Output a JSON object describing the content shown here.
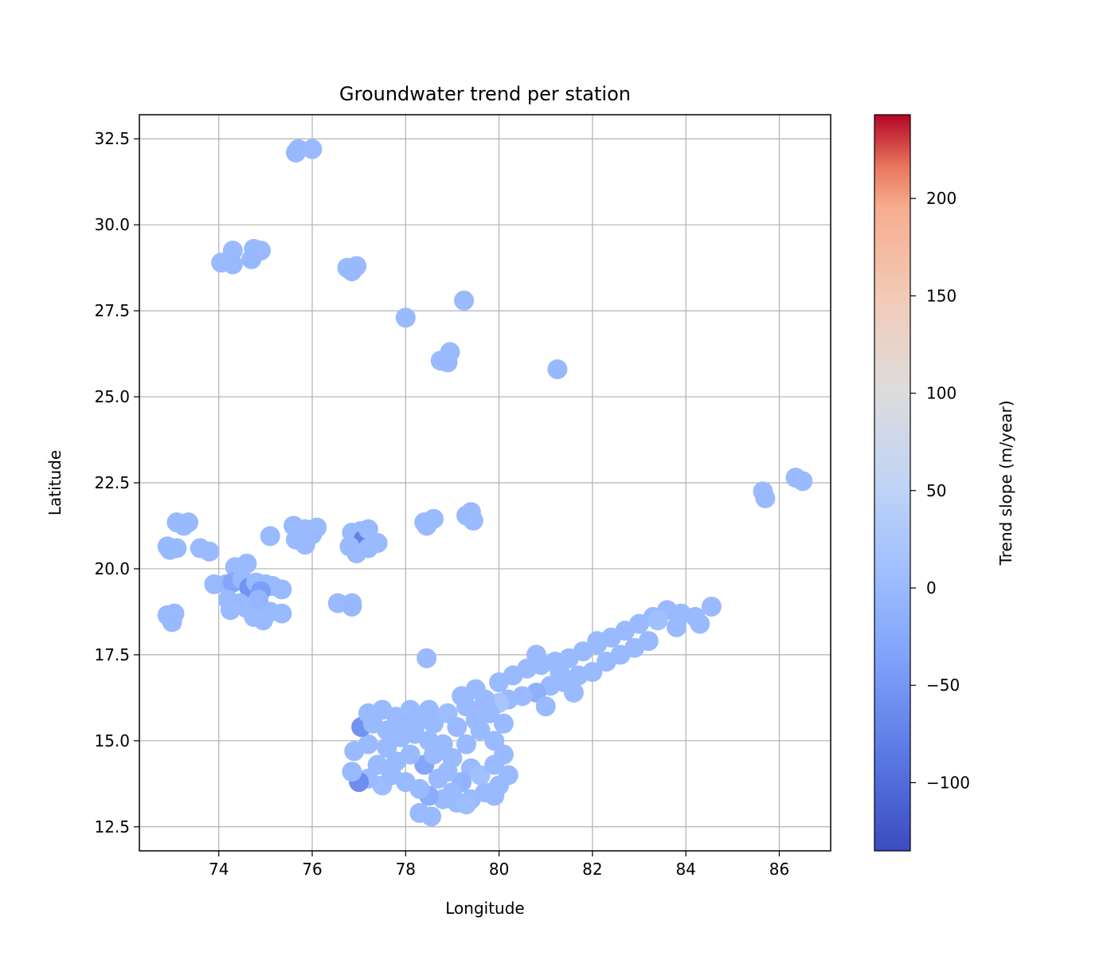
{
  "chart_data": {
    "type": "scatter",
    "title": "Groundwater trend per station",
    "xlabel": "Longitude",
    "ylabel": "Latitude",
    "xlim": [
      72.3,
      87.1
    ],
    "ylim": [
      11.8,
      33.2
    ],
    "xticks": [
      74,
      76,
      78,
      80,
      82,
      84,
      86
    ],
    "yticks": [
      12.5,
      15.0,
      17.5,
      20.0,
      22.5,
      25.0,
      27.5,
      30.0,
      32.5
    ],
    "grid": true,
    "colormap": "coolwarm",
    "colorbar": {
      "label": "Trend slope (m/year)",
      "min": -135,
      "max": 243,
      "ticks": [
        -100,
        -50,
        0,
        50,
        100,
        150,
        200
      ]
    },
    "stations": [
      {
        "x": 75.7,
        "y": 32.2,
        "v": 0
      },
      {
        "x": 75.65,
        "y": 32.1,
        "v": -2
      },
      {
        "x": 76.0,
        "y": 32.2,
        "v": 0
      },
      {
        "x": 74.3,
        "y": 29.25,
        "v": 0
      },
      {
        "x": 74.05,
        "y": 28.9,
        "v": 0
      },
      {
        "x": 74.3,
        "y": 28.85,
        "v": -1
      },
      {
        "x": 74.75,
        "y": 29.3,
        "v": 0
      },
      {
        "x": 74.9,
        "y": 29.25,
        "v": 0
      },
      {
        "x": 74.7,
        "y": 29.0,
        "v": -2
      },
      {
        "x": 76.75,
        "y": 28.75,
        "v": 0
      },
      {
        "x": 76.95,
        "y": 28.8,
        "v": 0
      },
      {
        "x": 76.85,
        "y": 28.65,
        "v": -1
      },
      {
        "x": 79.25,
        "y": 27.8,
        "v": 0
      },
      {
        "x": 78.0,
        "y": 27.3,
        "v": 0
      },
      {
        "x": 78.95,
        "y": 26.3,
        "v": 0
      },
      {
        "x": 78.75,
        "y": 26.05,
        "v": 0
      },
      {
        "x": 78.9,
        "y": 26.0,
        "v": -1
      },
      {
        "x": 81.25,
        "y": 25.8,
        "v": -1
      },
      {
        "x": 85.65,
        "y": 22.25,
        "v": 0
      },
      {
        "x": 85.7,
        "y": 22.05,
        "v": 0
      },
      {
        "x": 86.35,
        "y": 22.65,
        "v": 0
      },
      {
        "x": 86.5,
        "y": 22.55,
        "v": 0
      },
      {
        "x": 73.1,
        "y": 21.35,
        "v": 0
      },
      {
        "x": 73.35,
        "y": 21.35,
        "v": 0
      },
      {
        "x": 73.25,
        "y": 21.25,
        "v": -1
      },
      {
        "x": 72.9,
        "y": 20.65,
        "v": 0
      },
      {
        "x": 73.1,
        "y": 20.6,
        "v": 0
      },
      {
        "x": 72.95,
        "y": 20.55,
        "v": -1
      },
      {
        "x": 73.6,
        "y": 20.6,
        "v": 0
      },
      {
        "x": 73.8,
        "y": 20.5,
        "v": 0
      },
      {
        "x": 72.9,
        "y": 18.65,
        "v": 0
      },
      {
        "x": 73.05,
        "y": 18.7,
        "v": 0
      },
      {
        "x": 73.0,
        "y": 18.45,
        "v": -1
      },
      {
        "x": 73.9,
        "y": 19.55,
        "v": 0
      },
      {
        "x": 74.15,
        "y": 19.55,
        "v": -2
      },
      {
        "x": 74.35,
        "y": 20.05,
        "v": 0
      },
      {
        "x": 74.6,
        "y": 20.15,
        "v": 0
      },
      {
        "x": 74.3,
        "y": 19.6,
        "v": -30
      },
      {
        "x": 74.5,
        "y": 19.7,
        "v": 0
      },
      {
        "x": 74.65,
        "y": 19.45,
        "v": -55
      },
      {
        "x": 74.8,
        "y": 19.6,
        "v": 0
      },
      {
        "x": 75.0,
        "y": 19.55,
        "v": 0
      },
      {
        "x": 75.15,
        "y": 19.5,
        "v": 0
      },
      {
        "x": 75.35,
        "y": 19.4,
        "v": 0
      },
      {
        "x": 74.9,
        "y": 19.35,
        "v": -40
      },
      {
        "x": 74.2,
        "y": 19.1,
        "v": 0
      },
      {
        "x": 74.45,
        "y": 19.0,
        "v": 0
      },
      {
        "x": 74.25,
        "y": 18.8,
        "v": 0
      },
      {
        "x": 74.6,
        "y": 18.85,
        "v": 0
      },
      {
        "x": 74.75,
        "y": 18.6,
        "v": 0
      },
      {
        "x": 74.95,
        "y": 18.5,
        "v": 0
      },
      {
        "x": 75.1,
        "y": 18.75,
        "v": 0
      },
      {
        "x": 75.35,
        "y": 18.7,
        "v": 0
      },
      {
        "x": 74.85,
        "y": 19.1,
        "v": -5
      },
      {
        "x": 75.1,
        "y": 20.95,
        "v": 0
      },
      {
        "x": 75.6,
        "y": 21.25,
        "v": 0
      },
      {
        "x": 75.85,
        "y": 21.15,
        "v": 0
      },
      {
        "x": 76.1,
        "y": 21.2,
        "v": 0
      },
      {
        "x": 75.65,
        "y": 20.85,
        "v": 0
      },
      {
        "x": 75.85,
        "y": 20.7,
        "v": 0
      },
      {
        "x": 76.0,
        "y": 21.0,
        "v": 0
      },
      {
        "x": 76.85,
        "y": 21.05,
        "v": 0
      },
      {
        "x": 77.05,
        "y": 21.1,
        "v": 0
      },
      {
        "x": 77.1,
        "y": 20.85,
        "v": -75
      },
      {
        "x": 76.8,
        "y": 20.65,
        "v": 0
      },
      {
        "x": 76.95,
        "y": 20.45,
        "v": 0
      },
      {
        "x": 77.2,
        "y": 20.6,
        "v": 0
      },
      {
        "x": 77.4,
        "y": 20.75,
        "v": 0
      },
      {
        "x": 77.2,
        "y": 21.15,
        "v": 0
      },
      {
        "x": 76.55,
        "y": 19.0,
        "v": 0
      },
      {
        "x": 76.85,
        "y": 19.0,
        "v": 0
      },
      {
        "x": 76.85,
        "y": 18.9,
        "v": -1
      },
      {
        "x": 78.4,
        "y": 21.35,
        "v": 0
      },
      {
        "x": 78.6,
        "y": 21.45,
        "v": 0
      },
      {
        "x": 78.45,
        "y": 21.25,
        "v": 0
      },
      {
        "x": 79.4,
        "y": 21.65,
        "v": 0
      },
      {
        "x": 79.3,
        "y": 21.55,
        "v": 0
      },
      {
        "x": 79.45,
        "y": 21.4,
        "v": 0
      },
      {
        "x": 78.45,
        "y": 17.4,
        "v": 0
      },
      {
        "x": 80.0,
        "y": 16.7,
        "v": 0
      },
      {
        "x": 80.3,
        "y": 16.9,
        "v": 0
      },
      {
        "x": 80.6,
        "y": 17.1,
        "v": 0
      },
      {
        "x": 80.9,
        "y": 17.2,
        "v": 0
      },
      {
        "x": 81.2,
        "y": 17.3,
        "v": 0
      },
      {
        "x": 81.5,
        "y": 17.4,
        "v": 0
      },
      {
        "x": 81.8,
        "y": 17.6,
        "v": 0
      },
      {
        "x": 82.1,
        "y": 17.8,
        "v": 0
      },
      {
        "x": 82.4,
        "y": 18.0,
        "v": 0
      },
      {
        "x": 82.7,
        "y": 18.2,
        "v": 0
      },
      {
        "x": 83.0,
        "y": 18.4,
        "v": 0
      },
      {
        "x": 83.3,
        "y": 18.6,
        "v": 0
      },
      {
        "x": 83.6,
        "y": 18.8,
        "v": 0
      },
      {
        "x": 83.9,
        "y": 18.7,
        "v": 0
      },
      {
        "x": 84.2,
        "y": 18.6,
        "v": 0
      },
      {
        "x": 84.55,
        "y": 18.9,
        "v": 0
      },
      {
        "x": 84.3,
        "y": 18.4,
        "v": 0
      },
      {
        "x": 83.8,
        "y": 18.3,
        "v": 0
      },
      {
        "x": 83.4,
        "y": 18.5,
        "v": 10
      },
      {
        "x": 83.2,
        "y": 17.9,
        "v": 0
      },
      {
        "x": 82.9,
        "y": 17.7,
        "v": 0
      },
      {
        "x": 82.6,
        "y": 17.5,
        "v": 0
      },
      {
        "x": 82.3,
        "y": 17.3,
        "v": 0
      },
      {
        "x": 82.0,
        "y": 17.0,
        "v": 0
      },
      {
        "x": 81.7,
        "y": 16.9,
        "v": 0
      },
      {
        "x": 81.4,
        "y": 16.7,
        "v": 0
      },
      {
        "x": 81.1,
        "y": 16.6,
        "v": 0
      },
      {
        "x": 80.8,
        "y": 16.4,
        "v": -15
      },
      {
        "x": 80.5,
        "y": 16.3,
        "v": 0
      },
      {
        "x": 80.2,
        "y": 16.2,
        "v": 0
      },
      {
        "x": 80.0,
        "y": 16.1,
        "v": 20
      },
      {
        "x": 81.0,
        "y": 16.0,
        "v": 0
      },
      {
        "x": 80.8,
        "y": 17.5,
        "v": 0
      },
      {
        "x": 81.6,
        "y": 16.4,
        "v": 0
      },
      {
        "x": 82.1,
        "y": 17.9,
        "v": 0
      },
      {
        "x": 81.3,
        "y": 17.0,
        "v": 0
      },
      {
        "x": 79.5,
        "y": 16.5,
        "v": 0
      },
      {
        "x": 79.7,
        "y": 16.2,
        "v": 0
      },
      {
        "x": 79.3,
        "y": 16.0,
        "v": 0
      },
      {
        "x": 79.8,
        "y": 15.8,
        "v": 0
      },
      {
        "x": 80.1,
        "y": 15.5,
        "v": 0
      },
      {
        "x": 79.6,
        "y": 15.3,
        "v": 0
      },
      {
        "x": 79.9,
        "y": 15.0,
        "v": 0
      },
      {
        "x": 80.1,
        "y": 14.6,
        "v": 0
      },
      {
        "x": 80.2,
        "y": 14.0,
        "v": 0
      },
      {
        "x": 80.0,
        "y": 13.7,
        "v": 0
      },
      {
        "x": 79.7,
        "y": 13.5,
        "v": 0
      },
      {
        "x": 79.4,
        "y": 13.3,
        "v": 0
      },
      {
        "x": 79.1,
        "y": 13.2,
        "v": 0
      },
      {
        "x": 78.8,
        "y": 13.3,
        "v": 0
      },
      {
        "x": 78.5,
        "y": 13.4,
        "v": -20
      },
      {
        "x": 78.3,
        "y": 12.9,
        "v": 0
      },
      {
        "x": 78.55,
        "y": 12.8,
        "v": 0
      },
      {
        "x": 79.3,
        "y": 13.15,
        "v": 5
      },
      {
        "x": 78.7,
        "y": 13.9,
        "v": 0
      },
      {
        "x": 78.4,
        "y": 14.3,
        "v": -30
      },
      {
        "x": 78.1,
        "y": 14.6,
        "v": 0
      },
      {
        "x": 77.8,
        "y": 14.4,
        "v": 0
      },
      {
        "x": 77.5,
        "y": 13.7,
        "v": 5
      },
      {
        "x": 77.2,
        "y": 13.9,
        "v": 0
      },
      {
        "x": 77.0,
        "y": 13.8,
        "v": -60
      },
      {
        "x": 76.85,
        "y": 14.1,
        "v": 0
      },
      {
        "x": 76.9,
        "y": 14.7,
        "v": 0
      },
      {
        "x": 77.2,
        "y": 14.9,
        "v": 0
      },
      {
        "x": 77.05,
        "y": 15.4,
        "v": -55
      },
      {
        "x": 77.2,
        "y": 15.8,
        "v": 0
      },
      {
        "x": 77.5,
        "y": 15.9,
        "v": 0
      },
      {
        "x": 77.8,
        "y": 15.7,
        "v": 0
      },
      {
        "x": 78.1,
        "y": 15.9,
        "v": 0
      },
      {
        "x": 78.3,
        "y": 15.6,
        "v": 0
      },
      {
        "x": 78.6,
        "y": 15.5,
        "v": 0
      },
      {
        "x": 78.9,
        "y": 15.8,
        "v": 5
      },
      {
        "x": 79.1,
        "y": 15.4,
        "v": 0
      },
      {
        "x": 79.3,
        "y": 14.9,
        "v": 0
      },
      {
        "x": 79.0,
        "y": 14.5,
        "v": 0
      },
      {
        "x": 78.8,
        "y": 14.9,
        "v": 0
      },
      {
        "x": 78.5,
        "y": 15.0,
        "v": 0
      },
      {
        "x": 78.2,
        "y": 15.2,
        "v": 0
      },
      {
        "x": 77.9,
        "y": 15.1,
        "v": 0
      },
      {
        "x": 77.6,
        "y": 14.8,
        "v": 0
      },
      {
        "x": 77.4,
        "y": 14.3,
        "v": 0
      },
      {
        "x": 77.7,
        "y": 14.0,
        "v": 0
      },
      {
        "x": 78.0,
        "y": 13.8,
        "v": 0
      },
      {
        "x": 78.3,
        "y": 13.6,
        "v": 0
      },
      {
        "x": 79.4,
        "y": 14.2,
        "v": 0
      },
      {
        "x": 79.6,
        "y": 14.0,
        "v": 10
      },
      {
        "x": 79.9,
        "y": 14.3,
        "v": 0
      },
      {
        "x": 79.2,
        "y": 13.8,
        "v": -10
      },
      {
        "x": 78.9,
        "y": 14.1,
        "v": 0
      },
      {
        "x": 78.6,
        "y": 14.6,
        "v": 0
      },
      {
        "x": 79.5,
        "y": 15.6,
        "v": 0
      },
      {
        "x": 79.7,
        "y": 16.0,
        "v": 0
      },
      {
        "x": 79.2,
        "y": 16.3,
        "v": 0
      },
      {
        "x": 78.5,
        "y": 15.9,
        "v": 0
      },
      {
        "x": 78.0,
        "y": 15.4,
        "v": 0
      },
      {
        "x": 77.6,
        "y": 15.3,
        "v": 0
      },
      {
        "x": 77.3,
        "y": 15.5,
        "v": 0
      },
      {
        "x": 79.9,
        "y": 13.4,
        "v": 0
      },
      {
        "x": 79.0,
        "y": 13.5,
        "v": 0
      }
    ]
  }
}
